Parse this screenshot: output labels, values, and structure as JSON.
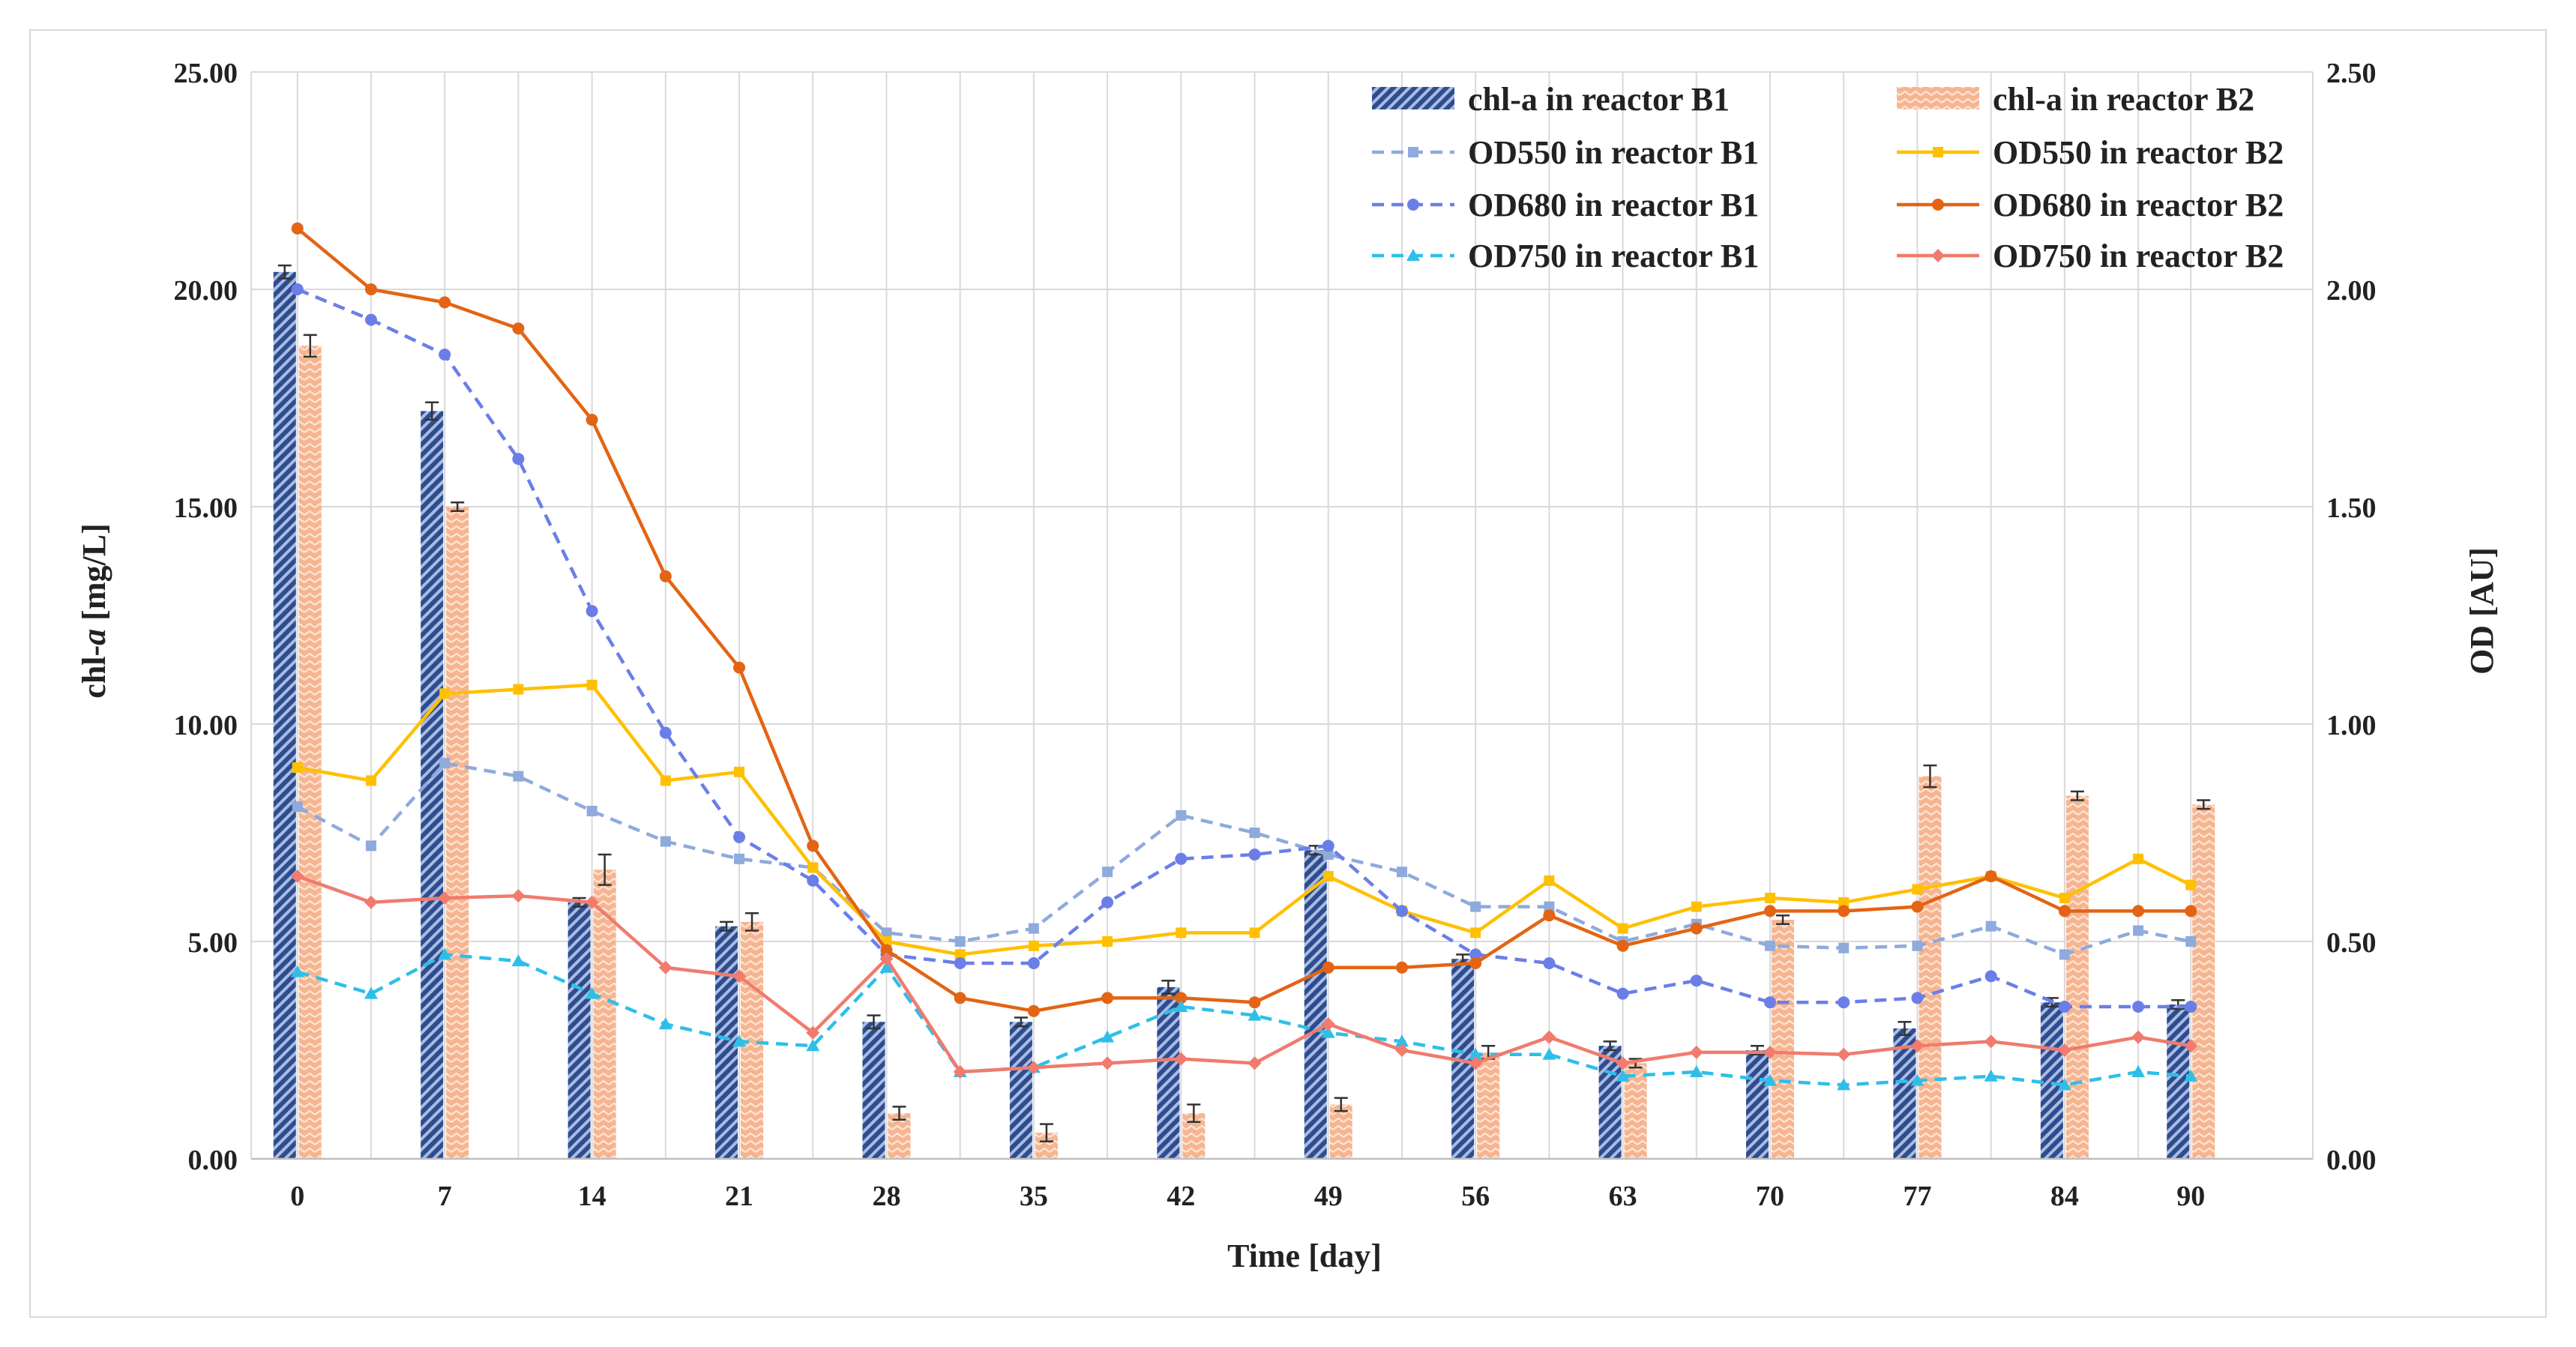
{
  "chart_data": {
    "type": "bar+line",
    "xlabel": "Time [day]",
    "ylabel_left_prefix": "chl-",
    "ylabel_left_italic": "a",
    "ylabel_left_suffix": " [mg/L]",
    "ylabel_right": "OD [AU]",
    "x_ticks": [
      0,
      7,
      14,
      21,
      28,
      35,
      42,
      49,
      56,
      63,
      70,
      77,
      84,
      90
    ],
    "y_left_ticks": [
      "0.00",
      "5.00",
      "10.00",
      "15.00",
      "20.00",
      "25.00"
    ],
    "y_right_ticks": [
      "0.00",
      "0.50",
      "1.00",
      "1.50",
      "2.00",
      "2.50"
    ],
    "ylim_left": [
      0,
      25
    ],
    "ylim_right": [
      0,
      2.5
    ],
    "grid": "both",
    "legend_position": "top-right",
    "bar_series": [
      {
        "name": "chl-a in reactor B1",
        "color": "#2E4C8F",
        "pattern": "diagonal-stripe",
        "x": [
          0,
          7,
          14,
          21,
          28,
          35,
          42,
          49,
          56,
          63,
          70,
          77,
          84,
          90
        ],
        "values": [
          20.4,
          17.2,
          5.9,
          5.35,
          3.15,
          3.15,
          3.95,
          7.1,
          4.6,
          2.6,
          2.5,
          3.0,
          3.6,
          3.55
        ],
        "errors": [
          0.15,
          0.2,
          0.1,
          0.1,
          0.15,
          0.1,
          0.15,
          0.1,
          0.1,
          0.1,
          0.1,
          0.15,
          0.1,
          0.1
        ]
      },
      {
        "name": "chl-a in reactor B2",
        "color": "#F5A57A",
        "pattern": "zigzag",
        "x": [
          0,
          7,
          14,
          21,
          28,
          35,
          42,
          49,
          56,
          63,
          70,
          77,
          84,
          90
        ],
        "values": [
          18.7,
          15.0,
          6.65,
          5.45,
          1.05,
          0.6,
          1.05,
          1.25,
          2.45,
          2.2,
          5.5,
          8.8,
          8.35,
          8.15
        ],
        "errors": [
          0.25,
          0.1,
          0.35,
          0.2,
          0.15,
          0.2,
          0.2,
          0.15,
          0.15,
          0.1,
          0.1,
          0.25,
          0.1,
          0.1
        ]
      }
    ],
    "line_series": [
      {
        "name": "OD550 in reactor B1",
        "color": "#8FAADC",
        "dashed": true,
        "marker": "square",
        "x": [
          0,
          3.5,
          7,
          10.5,
          14,
          17.5,
          21,
          24.5,
          28,
          31.5,
          35,
          38.5,
          42,
          45.5,
          49,
          52.5,
          56,
          59.5,
          63,
          66.5,
          70,
          73.5,
          77,
          80.5,
          84,
          87.5,
          90
        ],
        "values": [
          0.81,
          0.72,
          0.91,
          0.88,
          0.8,
          0.73,
          0.69,
          0.67,
          0.52,
          0.5,
          0.53,
          0.66,
          0.79,
          0.75,
          0.7,
          0.66,
          0.58,
          0.58,
          0.5,
          0.54,
          0.49,
          0.485,
          0.49,
          0.535,
          0.47,
          0.525,
          0.5
        ]
      },
      {
        "name": "OD550 in reactor B2",
        "color": "#FFC000",
        "dashed": false,
        "marker": "square",
        "x": [
          0,
          3.5,
          7,
          10.5,
          14,
          17.5,
          21,
          24.5,
          28,
          31.5,
          35,
          38.5,
          42,
          45.5,
          49,
          52.5,
          56,
          59.5,
          63,
          66.5,
          70,
          73.5,
          77,
          80.5,
          84,
          87.5,
          90
        ],
        "values": [
          0.9,
          0.87,
          1.07,
          1.08,
          1.09,
          0.87,
          0.89,
          0.67,
          0.5,
          0.47,
          0.49,
          0.5,
          0.52,
          0.52,
          0.65,
          0.57,
          0.52,
          0.64,
          0.53,
          0.58,
          0.6,
          0.59,
          0.62,
          0.65,
          0.6,
          0.69,
          0.63
        ]
      },
      {
        "name": "OD680 in reactor B1",
        "color": "#6B7EE8",
        "dashed": true,
        "marker": "circle",
        "x": [
          0,
          3.5,
          7,
          10.5,
          14,
          17.5,
          21,
          24.5,
          28,
          31.5,
          35,
          38.5,
          42,
          45.5,
          49,
          52.5,
          56,
          59.5,
          63,
          66.5,
          70,
          73.5,
          77,
          80.5,
          84,
          87.5,
          90
        ],
        "values": [
          2.0,
          1.93,
          1.85,
          1.61,
          1.26,
          0.98,
          0.74,
          0.64,
          0.47,
          0.45,
          0.45,
          0.59,
          0.69,
          0.7,
          0.72,
          0.57,
          0.47,
          0.45,
          0.38,
          0.41,
          0.36,
          0.36,
          0.37,
          0.42,
          0.35,
          0.35,
          0.35
        ]
      },
      {
        "name": "OD680 in reactor B2",
        "color": "#E36414",
        "dashed": false,
        "marker": "circle",
        "x": [
          0,
          3.5,
          7,
          10.5,
          14,
          17.5,
          21,
          24.5,
          28,
          31.5,
          35,
          38.5,
          42,
          45.5,
          49,
          52.5,
          56,
          59.5,
          63,
          66.5,
          70,
          73.5,
          77,
          80.5,
          84,
          87.5,
          90
        ],
        "values": [
          2.14,
          2.0,
          1.97,
          1.91,
          1.7,
          1.34,
          1.13,
          0.72,
          0.48,
          0.37,
          0.34,
          0.37,
          0.37,
          0.36,
          0.44,
          0.44,
          0.45,
          0.56,
          0.49,
          0.53,
          0.57,
          0.57,
          0.58,
          0.65,
          0.57,
          0.57,
          0.57
        ]
      },
      {
        "name": "OD750 in reactor B1",
        "color": "#2EBFE8",
        "dashed": true,
        "marker": "triangle",
        "x": [
          0,
          3.5,
          7,
          10.5,
          14,
          17.5,
          21,
          24.5,
          28,
          31.5,
          35,
          38.5,
          42,
          45.5,
          49,
          52.5,
          56,
          59.5,
          63,
          66.5,
          70,
          73.5,
          77,
          80.5,
          84,
          87.5,
          90
        ],
        "values": [
          0.43,
          0.38,
          0.47,
          0.455,
          0.38,
          0.31,
          0.27,
          0.26,
          0.44,
          0.2,
          0.21,
          0.28,
          0.35,
          0.33,
          0.29,
          0.27,
          0.24,
          0.24,
          0.19,
          0.2,
          0.18,
          0.17,
          0.18,
          0.19,
          0.17,
          0.2,
          0.19
        ]
      },
      {
        "name": "OD750 in reactor B2",
        "color": "#F07B6E",
        "dashed": false,
        "marker": "diamond",
        "x": [
          0,
          3.5,
          7,
          10.5,
          14,
          17.5,
          21,
          24.5,
          28,
          31.5,
          35,
          38.5,
          42,
          45.5,
          49,
          52.5,
          56,
          59.5,
          63,
          66.5,
          70,
          73.5,
          77,
          80.5,
          84,
          87.5,
          90
        ],
        "values": [
          0.65,
          0.59,
          0.6,
          0.605,
          0.59,
          0.44,
          0.42,
          0.29,
          0.46,
          0.2,
          0.21,
          0.22,
          0.23,
          0.22,
          0.31,
          0.25,
          0.22,
          0.28,
          0.22,
          0.245,
          0.245,
          0.24,
          0.26,
          0.27,
          0.25,
          0.28,
          0.26
        ]
      }
    ]
  }
}
